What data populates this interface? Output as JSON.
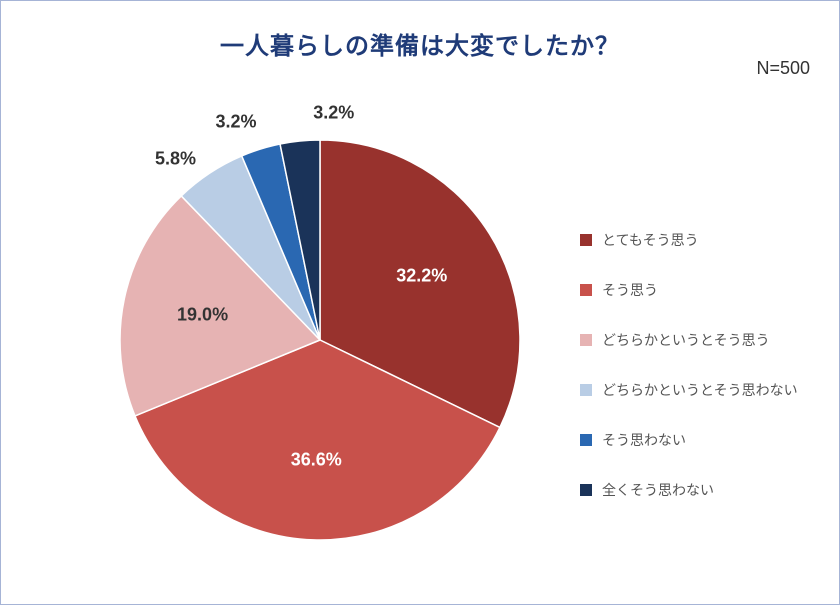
{
  "title": "一人暮らしの準備は大変でしたか？",
  "n_label": "N=500",
  "chart": {
    "type": "pie",
    "background_color": "#ffffff",
    "border_color": "#a6b4d6",
    "title_color": "#1f3b78",
    "title_fontsize": 24,
    "n_label_fontsize": 18,
    "label_fontsize": 18,
    "legend_fontsize": 14,
    "legend_text_color": "#555555",
    "radius": 200,
    "start_angle_deg": -90,
    "slices": [
      {
        "label": "とてもそう思う",
        "value": 32.2,
        "display": "32.2%",
        "color": "#98322d",
        "label_color": "#ffffff"
      },
      {
        "label": "そう思う",
        "value": 36.6,
        "display": "36.6%",
        "color": "#c8514b",
        "label_color": "#ffffff"
      },
      {
        "label": "どちらかというとそう思う",
        "value": 19.0,
        "display": "19.0%",
        "color": "#e6b3b3",
        "label_color": "#333333"
      },
      {
        "label": "どちらかというとそう思わない",
        "value": 5.8,
        "display": "5.8%",
        "color": "#b9cde5",
        "label_color": "#333333"
      },
      {
        "label": "そう思わない",
        "value": 3.2,
        "display": "3.2%",
        "color": "#2a68b2",
        "label_color": "#333333"
      },
      {
        "label": "全くそう思わない",
        "value": 3.2,
        "display": "3.2%",
        "color": "#1a3359",
        "label_color": "#333333"
      }
    ]
  }
}
